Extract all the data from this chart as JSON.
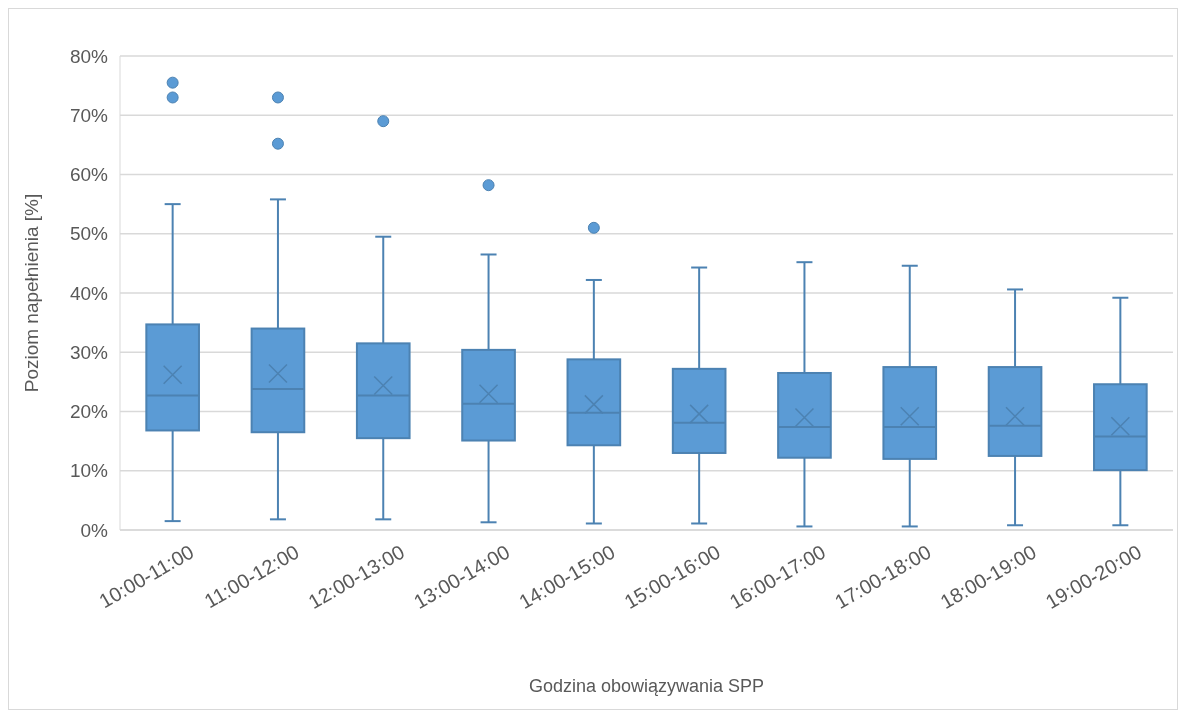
{
  "chart_data": {
    "type": "box",
    "xlabel": "Godzina obowiązywania SPP",
    "ylabel": "Poziom napełnienia [%]",
    "categories": [
      "10:00-11:00",
      "11:00-12:00",
      "12:00-13:00",
      "13:00-14:00",
      "14:00-15:00",
      "15:00-16:00",
      "16:00-17:00",
      "17:00-18:00",
      "18:00-19:00",
      "19:00-20:00"
    ],
    "color": "#5b9bd5",
    "boxes": [
      {
        "low": 1.5,
        "q1": 16.8,
        "median": 22.7,
        "q3": 34.7,
        "high": 55,
        "mean": 26.2,
        "outliers": [
          75.5,
          73
        ]
      },
      {
        "low": 1.8,
        "q1": 16.5,
        "median": 23.8,
        "q3": 34,
        "high": 55.8,
        "mean": 26.4,
        "outliers": [
          73,
          65.2
        ]
      },
      {
        "low": 1.8,
        "q1": 15.5,
        "median": 22.7,
        "q3": 31.5,
        "high": 49.5,
        "mean": 24.4,
        "outliers": [
          69
        ]
      },
      {
        "low": 1.3,
        "q1": 15.1,
        "median": 21.3,
        "q3": 30.4,
        "high": 46.5,
        "mean": 23,
        "outliers": [
          58.2
        ]
      },
      {
        "low": 1.1,
        "q1": 14.3,
        "median": 19.8,
        "q3": 28.8,
        "high": 42.2,
        "mean": 21.2,
        "outliers": [
          51
        ]
      },
      {
        "low": 1.1,
        "q1": 13,
        "median": 18.1,
        "q3": 27.2,
        "high": 44.3,
        "mean": 19.6
      },
      {
        "low": 0.6,
        "q1": 12.2,
        "median": 17.4,
        "q3": 26.5,
        "high": 45.2,
        "mean": 19
      },
      {
        "low": 0.6,
        "q1": 12,
        "median": 17.4,
        "q3": 27.5,
        "high": 44.6,
        "mean": 19.2
      },
      {
        "low": 0.8,
        "q1": 12.5,
        "median": 17.6,
        "q3": 27.5,
        "high": 40.6,
        "mean": 19.2
      },
      {
        "low": 0.8,
        "q1": 10.1,
        "median": 15.8,
        "q3": 24.6,
        "high": 39.2,
        "mean": 17.5
      }
    ],
    "ylim": [
      0,
      80
    ],
    "yticks": [
      {
        "value": 0,
        "label": "0%"
      },
      {
        "value": 10,
        "label": "10%"
      },
      {
        "value": 20,
        "label": "20%"
      },
      {
        "value": 30,
        "label": "30%"
      },
      {
        "value": 40,
        "label": "40%"
      },
      {
        "value": 50,
        "label": "50%"
      },
      {
        "value": 60,
        "label": "60%"
      },
      {
        "value": 70,
        "label": "70%"
      },
      {
        "value": 80,
        "label": "80%"
      }
    ],
    "grid": "y"
  }
}
